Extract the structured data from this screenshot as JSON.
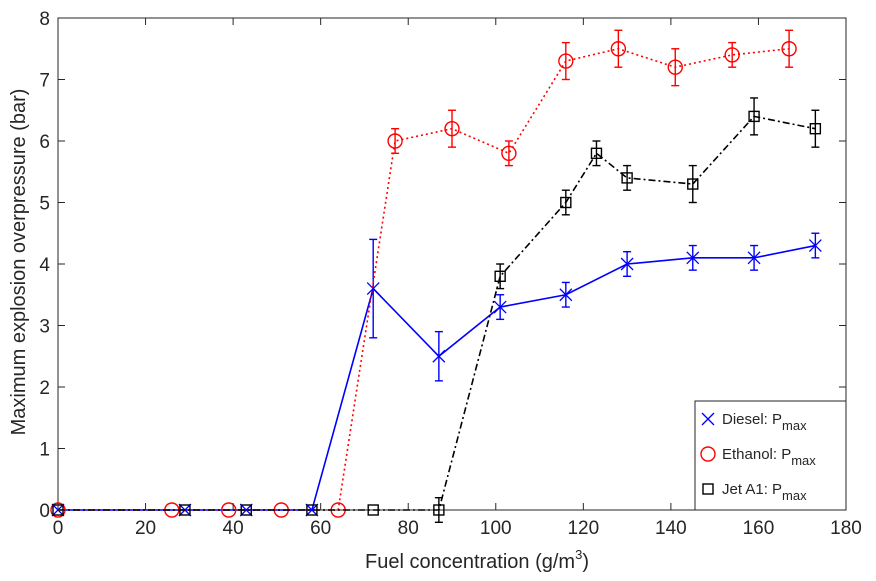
{
  "chart_data": {
    "type": "line",
    "xlabel": "Fuel concentration (g/m",
    "xlabel_sup": "3",
    "xlabel_end": ")",
    "ylabel": "Maximum explosion overpressure (bar)",
    "xlim": [
      0,
      180
    ],
    "ylim": [
      0,
      8
    ],
    "xticks": [
      0,
      20,
      40,
      60,
      80,
      100,
      120,
      140,
      160,
      180
    ],
    "yticks": [
      0,
      1,
      2,
      3,
      4,
      5,
      6,
      7,
      8
    ],
    "grid": false,
    "legend_position": "lower-right",
    "series": [
      {
        "name": "Diesel: P",
        "name_sub": "max",
        "color": "#0000ff",
        "marker": "x",
        "line_style": "solid",
        "x": [
          0,
          29,
          43,
          58,
          72,
          87,
          101,
          116,
          130,
          145,
          159,
          173
        ],
        "y": [
          0,
          0,
          0,
          0,
          3.6,
          2.5,
          3.3,
          3.5,
          4.0,
          4.1,
          4.1,
          4.3
        ],
        "err": [
          0,
          0,
          0,
          0,
          0.8,
          0.4,
          0.2,
          0.2,
          0.2,
          0.2,
          0.2,
          0.2
        ]
      },
      {
        "name": "Ethanol: P",
        "name_sub": "max",
        "color": "#ff0000",
        "marker": "o",
        "line_style": "dotted",
        "x": [
          0,
          26,
          39,
          51,
          64,
          77,
          90,
          103,
          116,
          128,
          141,
          154,
          167
        ],
        "y": [
          0,
          0,
          0,
          0,
          0,
          6.0,
          6.2,
          5.8,
          7.3,
          7.5,
          7.2,
          7.4,
          7.5
        ],
        "err": [
          0,
          0,
          0,
          0,
          0,
          0.2,
          0.3,
          0.2,
          0.3,
          0.3,
          0.3,
          0.2,
          0.3
        ]
      },
      {
        "name": "Jet A1: P",
        "name_sub": "max",
        "color": "#000000",
        "marker": "s",
        "line_style": "dashdot",
        "x": [
          0,
          29,
          43,
          58,
          72,
          87,
          101,
          116,
          123,
          130,
          145,
          159,
          173
        ],
        "y": [
          0,
          0,
          0,
          0,
          0,
          0,
          3.8,
          5.0,
          5.8,
          5.4,
          5.3,
          6.4,
          6.2
        ],
        "err": [
          0,
          0,
          0,
          0,
          0,
          0.2,
          0.2,
          0.2,
          0.2,
          0.2,
          0.3,
          0.3,
          0.3
        ]
      }
    ]
  }
}
